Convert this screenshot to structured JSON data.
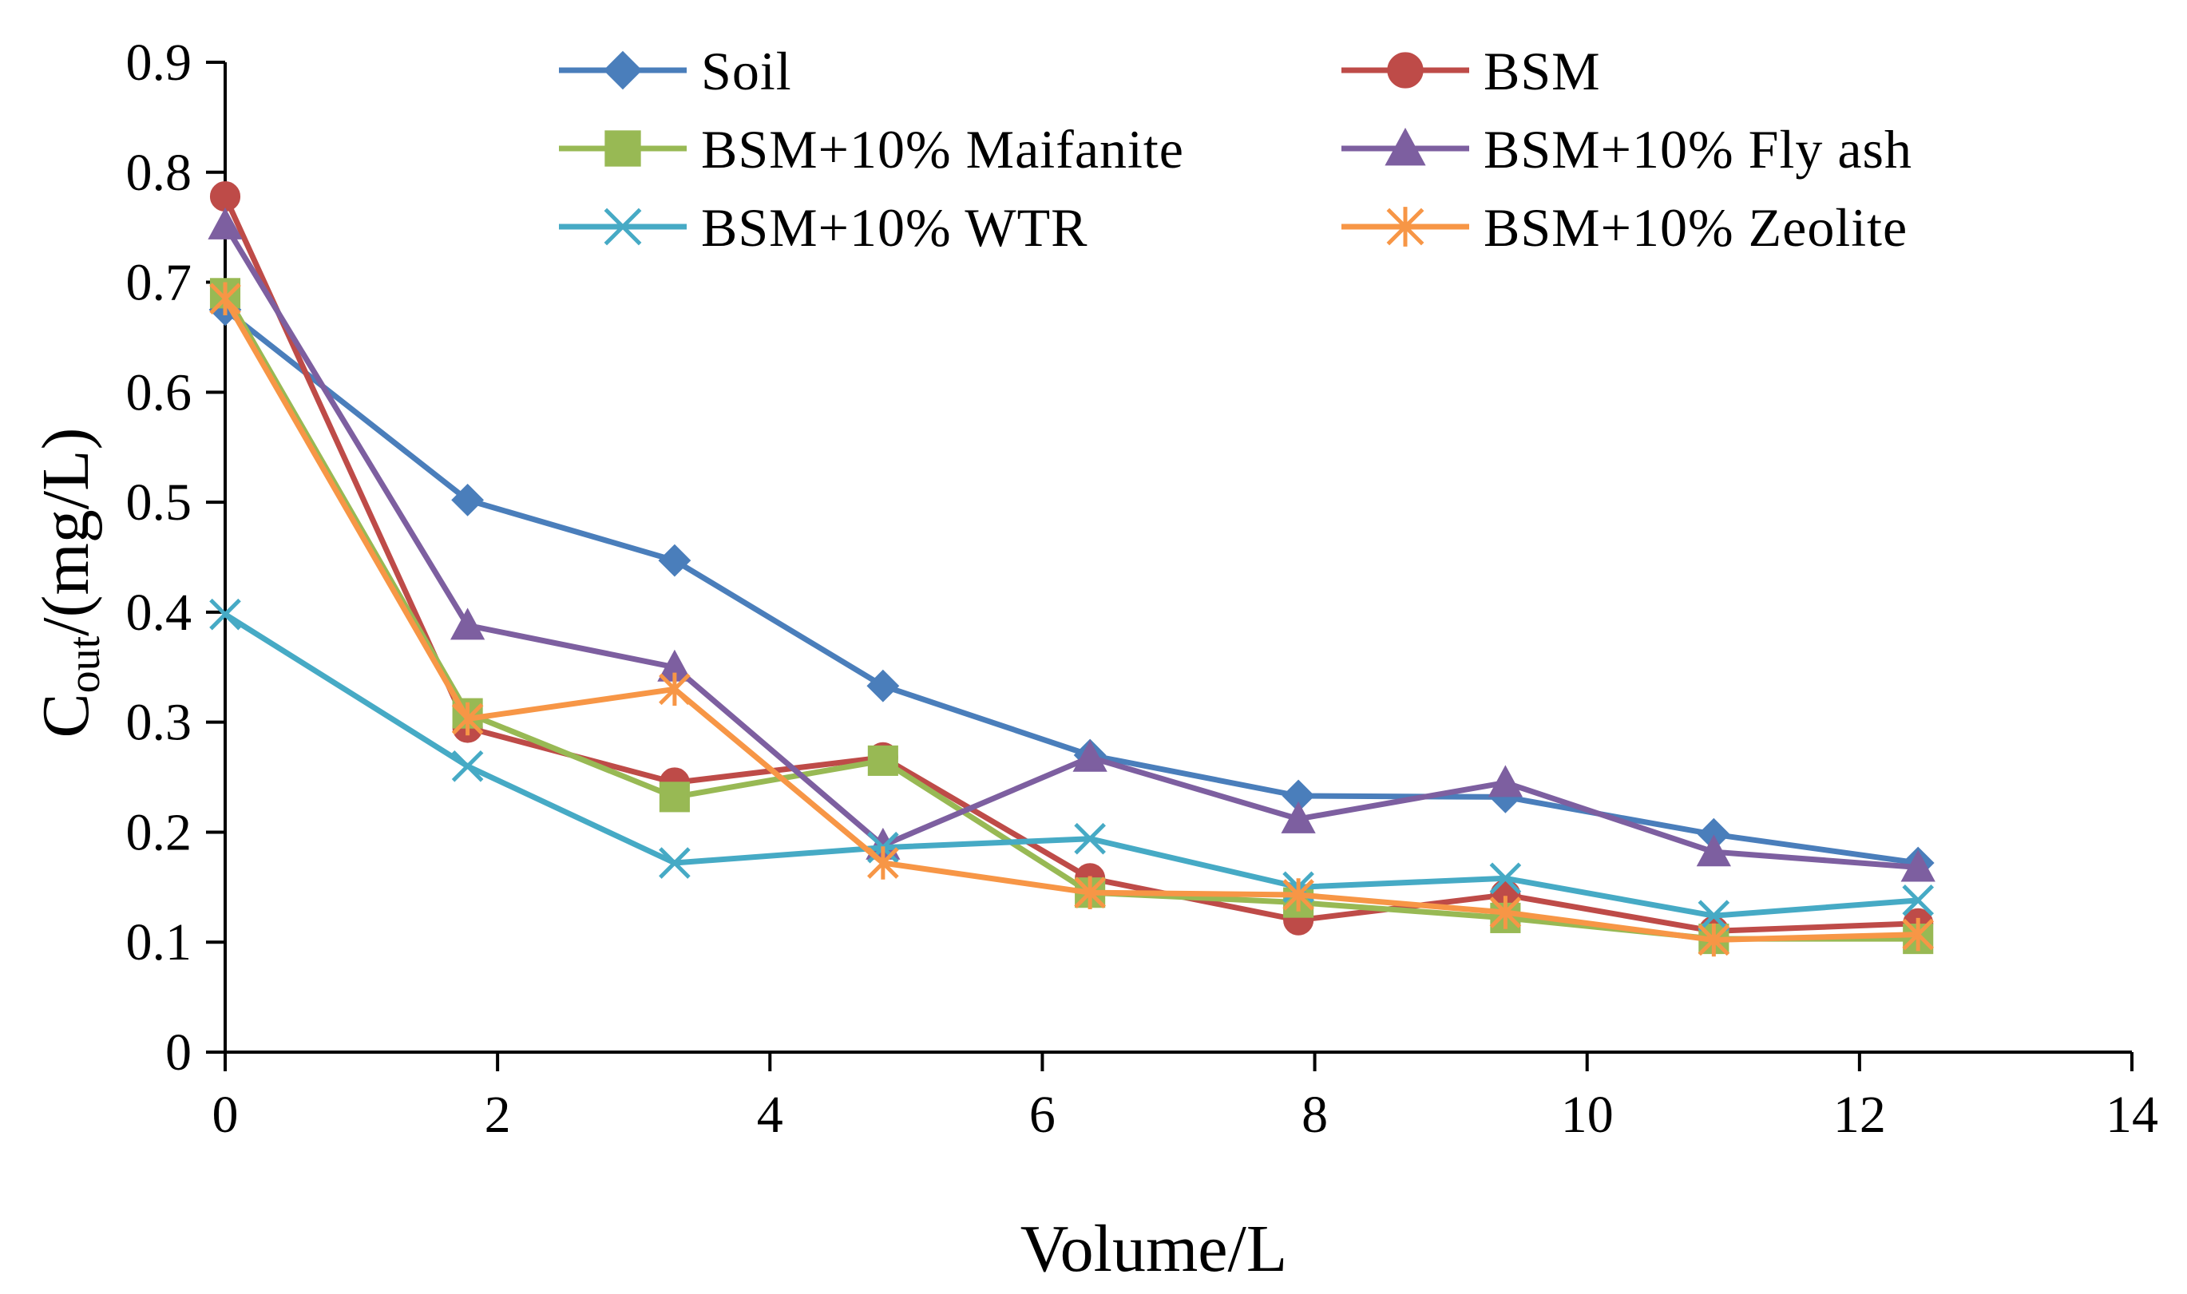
{
  "chart_data": {
    "type": "line",
    "title": "",
    "xlabel": "Volume/L",
    "ylabel": {
      "main": "C",
      "sub": "out",
      "rest": "/(mg/L)"
    },
    "xlim": [
      0,
      14
    ],
    "ylim": [
      0,
      0.9
    ],
    "x_ticks": [
      0,
      2,
      4,
      6,
      8,
      10,
      12,
      14
    ],
    "x_tick_labels": [
      "0",
      "2",
      "4",
      "6",
      "8",
      "10",
      "12",
      "14"
    ],
    "y_ticks": [
      0,
      0.1,
      0.2,
      0.3,
      0.4,
      0.5,
      0.6,
      0.7,
      0.8,
      0.9
    ],
    "y_tick_labels": [
      "0",
      "0.1",
      "0.2",
      "0.3",
      "0.4",
      "0.5",
      "0.6",
      "0.7",
      "0.8",
      "0.9"
    ],
    "grid": false,
    "legend_position": "top",
    "x": [
      0,
      1.78,
      3.3,
      4.83,
      6.35,
      7.88,
      9.4,
      10.93,
      12.43
    ],
    "series": [
      {
        "name": "Soil",
        "color": "#4a7ebb",
        "marker": "diamond",
        "values": [
          0.675,
          0.502,
          0.447,
          0.333,
          0.27,
          0.233,
          0.232,
          0.198,
          0.172
        ]
      },
      {
        "name": "BSM",
        "color": "#be4b48",
        "marker": "circle",
        "values": [
          0.778,
          0.295,
          0.245,
          0.268,
          0.158,
          0.12,
          0.143,
          0.11,
          0.117
        ]
      },
      {
        "name": "BSM+10% Maifanite",
        "color": "#98b954",
        "marker": "square",
        "values": [
          0.69,
          0.308,
          0.232,
          0.265,
          0.145,
          0.136,
          0.122,
          0.103,
          0.103
        ]
      },
      {
        "name": "BSM+10% Fly ash",
        "color": "#7d5fa0",
        "marker": "triangle",
        "values": [
          0.752,
          0.388,
          0.35,
          0.188,
          0.268,
          0.212,
          0.245,
          0.182,
          0.168
        ]
      },
      {
        "name": "BSM+10% WTR",
        "color": "#46aac5",
        "marker": "x",
        "values": [
          0.398,
          0.26,
          0.172,
          0.186,
          0.194,
          0.15,
          0.158,
          0.124,
          0.138
        ]
      },
      {
        "name": "BSM+10% Zeolite",
        "color": "#f79646",
        "marker": "asterisk",
        "values": [
          0.685,
          0.303,
          0.33,
          0.172,
          0.145,
          0.143,
          0.127,
          0.102,
          0.107
        ]
      }
    ]
  }
}
